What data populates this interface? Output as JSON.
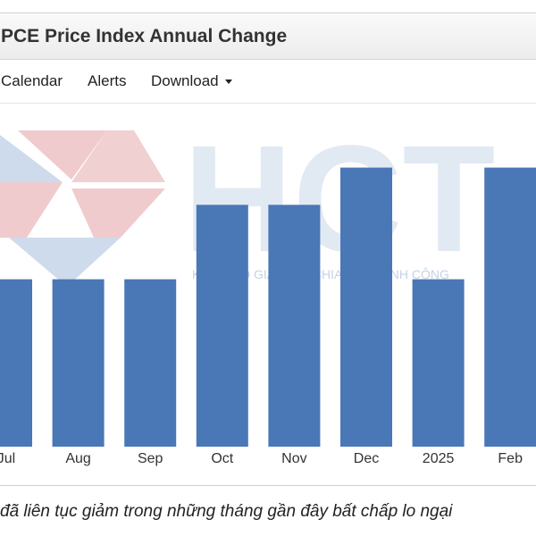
{
  "header": {
    "title": "PCE Price Index Annual Change"
  },
  "toolbar": {
    "calendar": "Calendar",
    "alerts": "Alerts",
    "download": "Download"
  },
  "watermark": {
    "logo_text": "HCT",
    "tagline": "KIẾN TẠO GIÁ TRỊ – CHIA SẺ THÀNH CÔNG"
  },
  "chart_data": {
    "type": "bar",
    "categories": [
      "Jul",
      "Aug",
      "Sep",
      "Oct",
      "Nov",
      "Dec",
      "2025",
      "Feb"
    ],
    "values": [
      2.3,
      2.3,
      2.3,
      2.5,
      2.5,
      2.6,
      2.3,
      2.6
    ],
    "title": "PCE Price Index Annual Change",
    "ylim": [
      1.85,
      2.7
    ],
    "grid": false,
    "bar_color": "#4a77b6"
  },
  "caption": "đã liên tục giảm trong những tháng gần đây bất chấp lo ngại"
}
